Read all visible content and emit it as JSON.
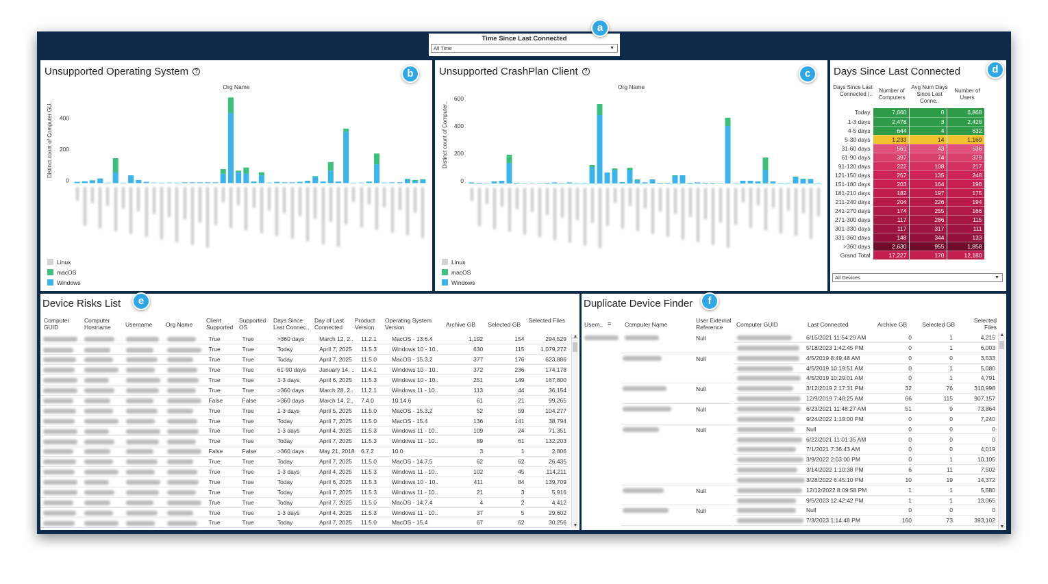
{
  "filter": {
    "label": "Time Since Last Connected",
    "value": "All Time"
  },
  "badges": [
    "a",
    "b",
    "c",
    "d",
    "e",
    "f"
  ],
  "os_panel": {
    "title": "Unsupported Operating System",
    "subtitle": "Org Name",
    "ylabel": "Distinct count of Computer GU..",
    "legend": [
      "Linux",
      "macOS",
      "Windows"
    ]
  },
  "client_panel": {
    "title": "Unsupported CrashPlan Client",
    "subtitle": "Org Name",
    "ylabel": "Distinct count of Computer..",
    "legend": [
      "Linux",
      "macOS",
      "Windows"
    ]
  },
  "colors": {
    "linux": "#d3d3d3",
    "macos": "#3cc07d",
    "windows": "#3ab4ec",
    "frame": "#0d2a4a",
    "badge": "#2ea7e6"
  },
  "chart_data": [
    {
      "type": "bar",
      "title": "Unsupported Operating System",
      "ylabel": "Distinct count of Computer GU..",
      "ylim": [
        -20,
        560
      ],
      "yticks": [
        0,
        200,
        400
      ],
      "stacked": true,
      "series": [
        {
          "name": "Windows",
          "values": [
            8,
            12,
            18,
            30,
            0,
            70,
            0,
            50,
            20,
            8,
            3,
            3,
            3,
            3,
            5,
            5,
            5,
            5,
            5,
            60,
            450,
            70,
            60,
            10,
            50,
            3,
            8,
            5,
            5,
            8,
            15,
            40,
            10,
            80,
            10,
            330,
            3,
            3,
            10,
            120,
            0,
            5,
            5,
            25,
            15,
            20
          ]
        },
        {
          "name": "macOS",
          "values": [
            0,
            0,
            0,
            0,
            0,
            90,
            0,
            0,
            0,
            0,
            0,
            0,
            0,
            0,
            0,
            0,
            0,
            0,
            0,
            30,
            100,
            10,
            40,
            0,
            20,
            0,
            0,
            0,
            0,
            0,
            0,
            5,
            0,
            55,
            0,
            20,
            0,
            0,
            0,
            70,
            0,
            0,
            0,
            3,
            5,
            5
          ]
        },
        {
          "name": "Linux",
          "values": [
            0,
            0,
            0,
            0,
            0,
            0,
            0,
            0,
            0,
            0,
            0,
            0,
            0,
            0,
            0,
            0,
            0,
            0,
            0,
            0,
            0,
            0,
            0,
            0,
            0,
            0,
            0,
            0,
            0,
            0,
            0,
            0,
            0,
            0,
            0,
            0,
            0,
            0,
            0,
            0,
            0,
            0,
            0,
            0,
            0,
            0
          ]
        }
      ]
    },
    {
      "type": "bar",
      "title": "Unsupported CrashPlan Client",
      "ylabel": "Distinct count of Computer..",
      "ylim": [
        -20,
        640
      ],
      "yticks": [
        0,
        200,
        400,
        600
      ],
      "stacked": true,
      "series": [
        {
          "name": "Windows",
          "values": [
            8,
            5,
            3,
            15,
            20,
            150,
            5,
            3,
            3,
            3,
            5,
            8,
            3,
            8,
            3,
            3,
            120,
            500,
            80,
            100,
            10,
            100,
            25,
            8,
            30,
            5,
            5,
            55,
            60,
            5,
            8,
            5,
            5,
            3,
            420,
            3,
            20,
            20,
            15,
            100,
            15,
            3,
            3,
            45,
            30,
            30,
            3
          ]
        },
        {
          "name": "macOS",
          "values": [
            0,
            0,
            0,
            0,
            0,
            60,
            0,
            0,
            0,
            0,
            0,
            0,
            0,
            0,
            0,
            0,
            15,
            80,
            0,
            10,
            0,
            15,
            5,
            0,
            0,
            0,
            0,
            5,
            0,
            0,
            0,
            0,
            0,
            0,
            60,
            0,
            0,
            0,
            0,
            90,
            0,
            0,
            0,
            5,
            5,
            3,
            0
          ]
        },
        {
          "name": "Linux",
          "values": [
            0,
            0,
            0,
            0,
            0,
            0,
            0,
            0,
            0,
            0,
            0,
            0,
            0,
            0,
            0,
            0,
            0,
            0,
            0,
            0,
            0,
            0,
            0,
            0,
            0,
            0,
            0,
            0,
            0,
            0,
            0,
            0,
            0,
            0,
            0,
            0,
            0,
            0,
            0,
            0,
            0,
            0,
            0,
            0,
            0,
            0,
            0
          ]
        }
      ]
    }
  ],
  "days_panel": {
    "title": "Days Since Last Connected",
    "headers": [
      "Days Since Last Connected (..",
      "Number of Computers",
      "Avg Num Days Since Last Conne..",
      "Number of Users"
    ],
    "rows": [
      {
        "label": "Today",
        "computers": "7,660",
        "avg": "0",
        "users": "6,868",
        "color": "#2e9b48"
      },
      {
        "label": "1-3 days",
        "computers": "2,478",
        "avg": "3",
        "users": "2,428",
        "color": "#2e9b48"
      },
      {
        "label": "4-5 days",
        "computers": "644",
        "avg": "4",
        "users": "632",
        "color": "#2e9b48"
      },
      {
        "label": "5-30 days",
        "computers": "1,233",
        "avg": "14",
        "users": "1,169",
        "color": "#f2c12e"
      },
      {
        "label": "31-60 days",
        "computers": "561",
        "avg": "43",
        "users": "536",
        "color": "#e0507a"
      },
      {
        "label": "61-90 days",
        "computers": "397",
        "avg": "74",
        "users": "379",
        "color": "#d9406b"
      },
      {
        "label": "91-120 days",
        "computers": "222",
        "avg": "108",
        "users": "217",
        "color": "#d4305f"
      },
      {
        "label": "121-150 days",
        "computers": "257",
        "avg": "135",
        "users": "248",
        "color": "#cc2456"
      },
      {
        "label": "151-180 days",
        "computers": "203",
        "avg": "164",
        "users": "198",
        "color": "#c71f50"
      },
      {
        "label": "181-210 days",
        "computers": "182",
        "avg": "197",
        "users": "175",
        "color": "#c01c4c"
      },
      {
        "label": "211-240 days",
        "computers": "204",
        "avg": "226",
        "users": "194",
        "color": "#b81a48"
      },
      {
        "label": "241-270 days",
        "computers": "174",
        "avg": "255",
        "users": "166",
        "color": "#b01845"
      },
      {
        "label": "271-300 days",
        "computers": "117",
        "avg": "286",
        "users": "115",
        "color": "#a81642"
      },
      {
        "label": "301-330 days",
        "computers": "117",
        "avg": "317",
        "users": "111",
        "color": "#9e143e"
      },
      {
        "label": "331-360 days",
        "computers": "148",
        "avg": "344",
        "users": "133",
        "color": "#94123a"
      },
      {
        "label": ">360 days",
        "computers": "2,630",
        "avg": "955",
        "users": "1,858",
        "color": "#6e0c2a"
      },
      {
        "label": "Grand Total",
        "computers": "17,227",
        "avg": "170",
        "users": "12,180",
        "color": "#c4204f"
      }
    ],
    "device_filter": "All Devices"
  },
  "risks_panel": {
    "title": "Device Risks List",
    "headers": [
      "Computer GUID",
      "Computer Hostname",
      "Username",
      "Org Name",
      "Client Supported",
      "Supported OS",
      "Days Since Last Connec..",
      "Day of Last Connected",
      "Product Version",
      "Operating System Version",
      "Archive GB",
      "Selected GB",
      "Selected Files"
    ],
    "rows": [
      [
        "True",
        "True",
        ">360 days",
        "March 12, 2..",
        "11.2.1",
        "MacOS - 13.6.4",
        "1,192",
        "154",
        "294,529"
      ],
      [
        "True",
        "True",
        "Today",
        "April 7, 2025",
        "11.5.3",
        "Windows 10 - 10..",
        "630",
        "115",
        "1,079,272"
      ],
      [
        "True",
        "True",
        "Today",
        "April 7, 2025",
        "11.5.0",
        "MacOS - 15.3.2",
        "377",
        "176",
        "623,886"
      ],
      [
        "True",
        "True",
        "61-90 days",
        "January 14, ..",
        "11.4.1",
        "Windows 10 - 10..",
        "372",
        "236",
        "174,178"
      ],
      [
        "True",
        "True",
        "1-3 days",
        "April 6, 2025",
        "11.5.3",
        "Windows 10 - 10..",
        "251",
        "149",
        "167,800"
      ],
      [
        "True",
        "True",
        ">360 days",
        "March 28, 2..",
        "11.2.1",
        "Windows 11 - 10..",
        "113",
        "44",
        "36,154"
      ],
      [
        "False",
        "False",
        ">360 days",
        "March 14, 2..",
        "7.4.0",
        "10.14.6",
        "61",
        "21",
        "99,265"
      ],
      [
        "True",
        "True",
        "1-3 days",
        "April 5, 2025",
        "11.5.0",
        "MacOS - 15.3.2",
        "52",
        "59",
        "104,277"
      ],
      [
        "True",
        "True",
        "Today",
        "April 7, 2025",
        "11.5.0",
        "MacOS - 15.4",
        "136",
        "141",
        "38,794"
      ],
      [
        "True",
        "True",
        "1-3 days",
        "April 4, 2025",
        "11.5.3",
        "Windows 11 - 10..",
        "109",
        "24",
        "71,351"
      ],
      [
        "True",
        "True",
        "Today",
        "April 7, 2025",
        "11.5.3",
        "Windows 11 - 10..",
        "89",
        "61",
        "132,203"
      ],
      [
        "False",
        "False",
        ">360 days",
        "May 21, 2018",
        "6.7.2",
        "10.0",
        "3",
        "1",
        "2,806"
      ],
      [
        "True",
        "True",
        "Today",
        "April 7, 2025",
        "11.5.0",
        "MacOS - 14.7.5",
        "62",
        "62",
        "26,435"
      ],
      [
        "True",
        "True",
        "1-3 days",
        "April 4, 2025",
        "11.5.3",
        "Windows 11 - 10..",
        "102",
        "45",
        "114,211"
      ],
      [
        "True",
        "True",
        "Today",
        "April 6, 2025",
        "11.5.3",
        "Windows 10 - 10..",
        "411",
        "84",
        "139,709"
      ],
      [
        "True",
        "True",
        "Today",
        "April 7, 2025",
        "11.5.3",
        "Windows 11 - 10..",
        "21",
        "3",
        "5,916"
      ],
      [
        "True",
        "True",
        "Today",
        "April 7, 2025",
        "11.5.0",
        "MacOS - 14.7.4",
        "4",
        "2",
        "4,412"
      ],
      [
        "True",
        "True",
        "1-3 days",
        "April 4, 2025",
        "11.5.3",
        "Windows 11 - 10..",
        "37",
        "5",
        "29,602"
      ],
      [
        "True",
        "True",
        "Today",
        "April 7, 2025",
        "11.5.0",
        "MacOS - 15.4",
        "67",
        "62",
        "30,256"
      ]
    ]
  },
  "dup_panel": {
    "title": "Duplicate Device Finder",
    "headers": [
      "Usern..",
      "Computer Name",
      "User External Reference",
      "Computer GUID",
      "Last Connected",
      "Archive GB",
      "Selected GB",
      "Selected Files"
    ],
    "groups": [
      {
        "ref": "Null",
        "rows": [
          [
            "6/15/2021 11:54:29 AM",
            "0",
            "1",
            "4,215"
          ],
          [
            "5/18/2023 1:42:45 PM",
            "0",
            "1",
            "6,003"
          ]
        ]
      },
      {
        "ref": "Null",
        "rows": [
          [
            "4/5/2019 8:49:48 AM",
            "0",
            "0",
            "3,533"
          ],
          [
            "4/5/2019 10:19:51 AM",
            "0",
            "1",
            "5,080"
          ],
          [
            "4/5/2019 10:29:01 AM",
            "0",
            "1",
            "4,791"
          ]
        ]
      },
      {
        "ref": "Null",
        "rows": [
          [
            "3/12/2019 2:17:31 PM",
            "32",
            "76",
            "310,998"
          ],
          [
            "12/9/2019 7:48:25 AM",
            "66",
            "115",
            "907,157"
          ]
        ]
      },
      {
        "ref": "Null",
        "rows": [
          [
            "6/23/2021 11:48:27 AM",
            "51",
            "9",
            "73,864"
          ],
          [
            "9/24/2022 1:19:00 PM",
            "0",
            "0",
            "7,240"
          ]
        ]
      },
      {
        "ref": "Null",
        "rows": [
          [
            "Null",
            "0",
            "0",
            "0"
          ],
          [
            "6/22/2021 11:01:35 AM",
            "0",
            "0",
            "0"
          ],
          [
            "7/1/2021 7:36:43 AM",
            "0",
            "0",
            "4,019"
          ],
          [
            "3/9/2022 2:03:00 PM",
            "0",
            "1",
            "10,105"
          ],
          [
            "3/14/2022 1:10:38 PM",
            "6",
            "11",
            "7,502"
          ],
          [
            "3/28/2022 6:45:10 PM",
            "10",
            "19",
            "14,372"
          ]
        ]
      },
      {
        "ref": "Null",
        "rows": [
          [
            "12/12/2022 8:09:58 PM",
            "1",
            "1",
            "5,580"
          ],
          [
            "9/5/2023 12:42:42 PM",
            "1",
            "1",
            "13,065"
          ]
        ]
      },
      {
        "ref": "Null",
        "rows": [
          [
            "Null",
            "0",
            "0",
            "0"
          ],
          [
            "7/3/2023 1:14:48 PM",
            "160",
            "73",
            "393,102"
          ]
        ]
      }
    ]
  }
}
